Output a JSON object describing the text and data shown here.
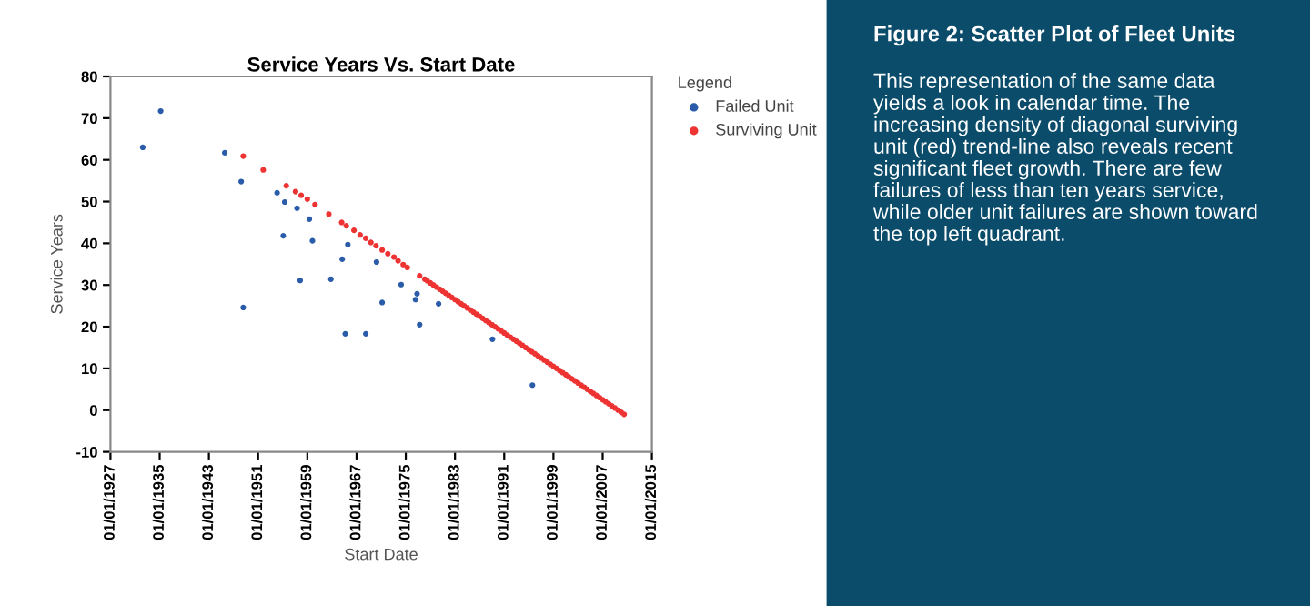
{
  "chart_data": {
    "type": "scatter",
    "title": "Service Years Vs. Start Date",
    "xlabel": "Start Date",
    "ylabel": "Service Years",
    "legend_title": "Legend",
    "legend": "right",
    "marker": "circle",
    "grid": false,
    "xlim": [
      "1927-01-01",
      "2015-01-01"
    ],
    "ylim": [
      -10,
      80
    ],
    "xticks": [
      {
        "value": "1927-01-01",
        "label": "01/01/1927"
      },
      {
        "value": "1935-01-01",
        "label": "01/01/1935"
      },
      {
        "value": "1943-01-01",
        "label": "01/01/1943"
      },
      {
        "value": "1951-01-01",
        "label": "01/01/1951"
      },
      {
        "value": "1959-01-01",
        "label": "01/01/1959"
      },
      {
        "value": "1967-01-01",
        "label": "01/01/1967"
      },
      {
        "value": "1975-01-01",
        "label": "01/01/1975"
      },
      {
        "value": "1983-01-01",
        "label": "01/01/1983"
      },
      {
        "value": "1991-01-01",
        "label": "01/01/1991"
      },
      {
        "value": "1999-01-01",
        "label": "01/01/1999"
      },
      {
        "value": "2007-01-01",
        "label": "01/01/2007"
      },
      {
        "value": "2015-01-01",
        "label": "01/01/2015"
      }
    ],
    "yticks": [
      -10,
      0,
      10,
      20,
      30,
      40,
      50,
      60,
      70,
      80
    ],
    "series": [
      {
        "name": "Failed Unit",
        "color": "#2a5caa",
        "x": [
          "1932-04",
          "1935-03",
          "1945-08",
          "1948-04",
          "1948-08",
          "1954-02",
          "1955-05",
          "1955-02",
          "1957-05",
          "1957-11",
          "1959-05",
          "1959-11",
          "1962-11",
          "1964-09",
          "1965-03",
          "1965-08",
          "1968-07",
          "1970-04",
          "1971-03",
          "1974-04",
          "1976-08",
          "1976-11",
          "1977-04",
          "1980-05",
          "1989-02",
          "1995-08"
        ],
        "values": [
          63.0,
          71.7,
          61.7,
          54.8,
          24.6,
          52.1,
          49.9,
          41.8,
          48.4,
          31.1,
          45.8,
          40.6,
          31.4,
          36.2,
          18.3,
          39.7,
          18.3,
          35.5,
          25.8,
          30.1,
          26.5,
          27.9,
          20.5,
          25.5,
          17.0,
          6.0
        ]
      },
      {
        "name": "Surviving Unit",
        "color": "#ee3333",
        "x": [
          "1948-08",
          "1951-11",
          "1955-08",
          "1957-02",
          "1958-01",
          "1959-01",
          "1960-04",
          "1962-07",
          "1964-08",
          "1965-05",
          "1966-08",
          "1967-08",
          "1968-07",
          "1969-05",
          "1970-03",
          "1971-03",
          "1972-02",
          "1973-02",
          "1973-10",
          "1974-08",
          "1975-04",
          "1977-04",
          "1978-02",
          "1978-07",
          "1979-01",
          "1979-07",
          "1980-01",
          "1980-07",
          "1981-01",
          "1981-07",
          "1982-01",
          "1982-07",
          "1983-01",
          "1983-07",
          "1984-01",
          "1984-07",
          "1985-01",
          "1985-07",
          "1986-01",
          "1986-07",
          "1987-01",
          "1987-07",
          "1988-01",
          "1988-07",
          "1989-01",
          "1989-07",
          "1990-01",
          "1990-07",
          "1991-01",
          "1991-07",
          "1992-01",
          "1992-07",
          "1993-01",
          "1993-07",
          "1994-01",
          "1994-07",
          "1995-01",
          "1995-07",
          "1996-01",
          "1996-07",
          "1997-01",
          "1997-07",
          "1998-01",
          "1998-07",
          "1999-01",
          "1999-07",
          "2000-01",
          "2000-07",
          "2001-01",
          "2001-07",
          "2002-01",
          "2002-07",
          "2003-01",
          "2003-07",
          "2004-01",
          "2004-07",
          "2005-01",
          "2005-07",
          "2006-01",
          "2006-07",
          "2007-01",
          "2007-07",
          "2008-01",
          "2008-07",
          "2009-01",
          "2009-07",
          "2010-01",
          "2010-07"
        ],
        "values": [
          60.9,
          57.6,
          53.8,
          52.4,
          51.5,
          50.6,
          49.3,
          47.0,
          45.0,
          44.2,
          43.1,
          42.0,
          41.2,
          40.2,
          39.4,
          38.4,
          37.5,
          36.7,
          35.8,
          34.9,
          34.2,
          32.2,
          31.4,
          31.0,
          30.5,
          30.0,
          29.5,
          29.0,
          28.5,
          28.0,
          27.5,
          27.0,
          26.5,
          26.0,
          25.5,
          25.0,
          24.5,
          24.0,
          23.5,
          23.0,
          22.5,
          22.0,
          21.5,
          21.0,
          20.5,
          20.0,
          19.5,
          19.0,
          18.5,
          18.0,
          17.5,
          17.0,
          16.5,
          16.0,
          15.5,
          15.0,
          14.5,
          14.0,
          13.5,
          13.0,
          12.5,
          12.0,
          11.5,
          11.0,
          10.5,
          10.0,
          9.5,
          9.0,
          8.5,
          8.0,
          7.5,
          7.0,
          6.5,
          6.0,
          5.5,
          5.0,
          4.5,
          4.0,
          3.5,
          3.0,
          2.5,
          2.0,
          1.5,
          1.0,
          0.5,
          0.0,
          -0.5,
          -1.0
        ]
      }
    ],
    "annotations": [
      "Figure 2: Scatter Plot of Fleet Units",
      "This representation of the same data yields a look in calendar time. The increasing density of diagonal surviving unit (red) trend-line also reveals recent significant fleet growth. There are few failures of less than ten years service, while older unit failures are shown toward the top left quadrant."
    ]
  }
}
